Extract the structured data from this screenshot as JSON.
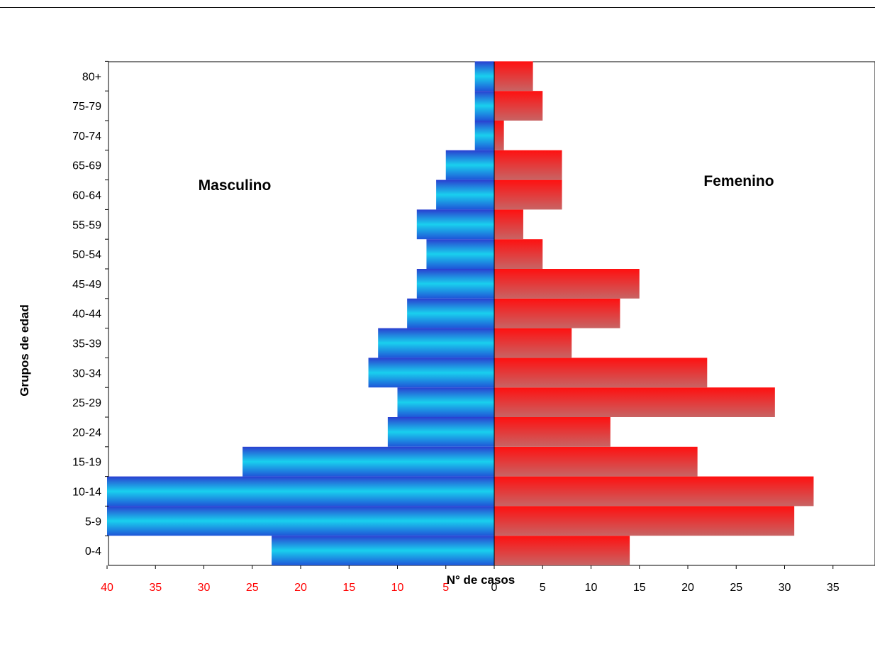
{
  "chart_data": {
    "type": "bar",
    "orientation": "horizontal",
    "style": "population-pyramid",
    "ylabel": "Grupos de edad",
    "xlabel": "N° de casos",
    "categories": [
      "0-4",
      "5-9",
      "10-14",
      "15-19",
      "20-24",
      "25-29",
      "30-34",
      "35-39",
      "40-44",
      "45-49",
      "50-54",
      "55-59",
      "60-64",
      "65-69",
      "70-74",
      "75-79",
      "80+"
    ],
    "series": [
      {
        "name": "Masculino",
        "color": "#1e90e0",
        "values": [
          23,
          40,
          40,
          26,
          11,
          10,
          13,
          12,
          9,
          8,
          7,
          8,
          6,
          5,
          2,
          2,
          2
        ]
      },
      {
        "name": "Femenino",
        "color": "#ff2020",
        "values": [
          14,
          31,
          33,
          21,
          12,
          29,
          22,
          8,
          13,
          15,
          5,
          3,
          7,
          7,
          1,
          5,
          4
        ]
      }
    ],
    "xlim": [
      -40,
      40
    ],
    "x_ticks_left": [
      "40",
      "35",
      "30",
      "25",
      "20",
      "15",
      "10",
      "5"
    ],
    "x_ticks_right": [
      "0",
      "5",
      "10",
      "15",
      "20",
      "25",
      "30",
      "35"
    ],
    "left_tick_color": "#ff0000",
    "right_tick_color": "#000000",
    "grid": false,
    "legend": "inline-labels"
  }
}
